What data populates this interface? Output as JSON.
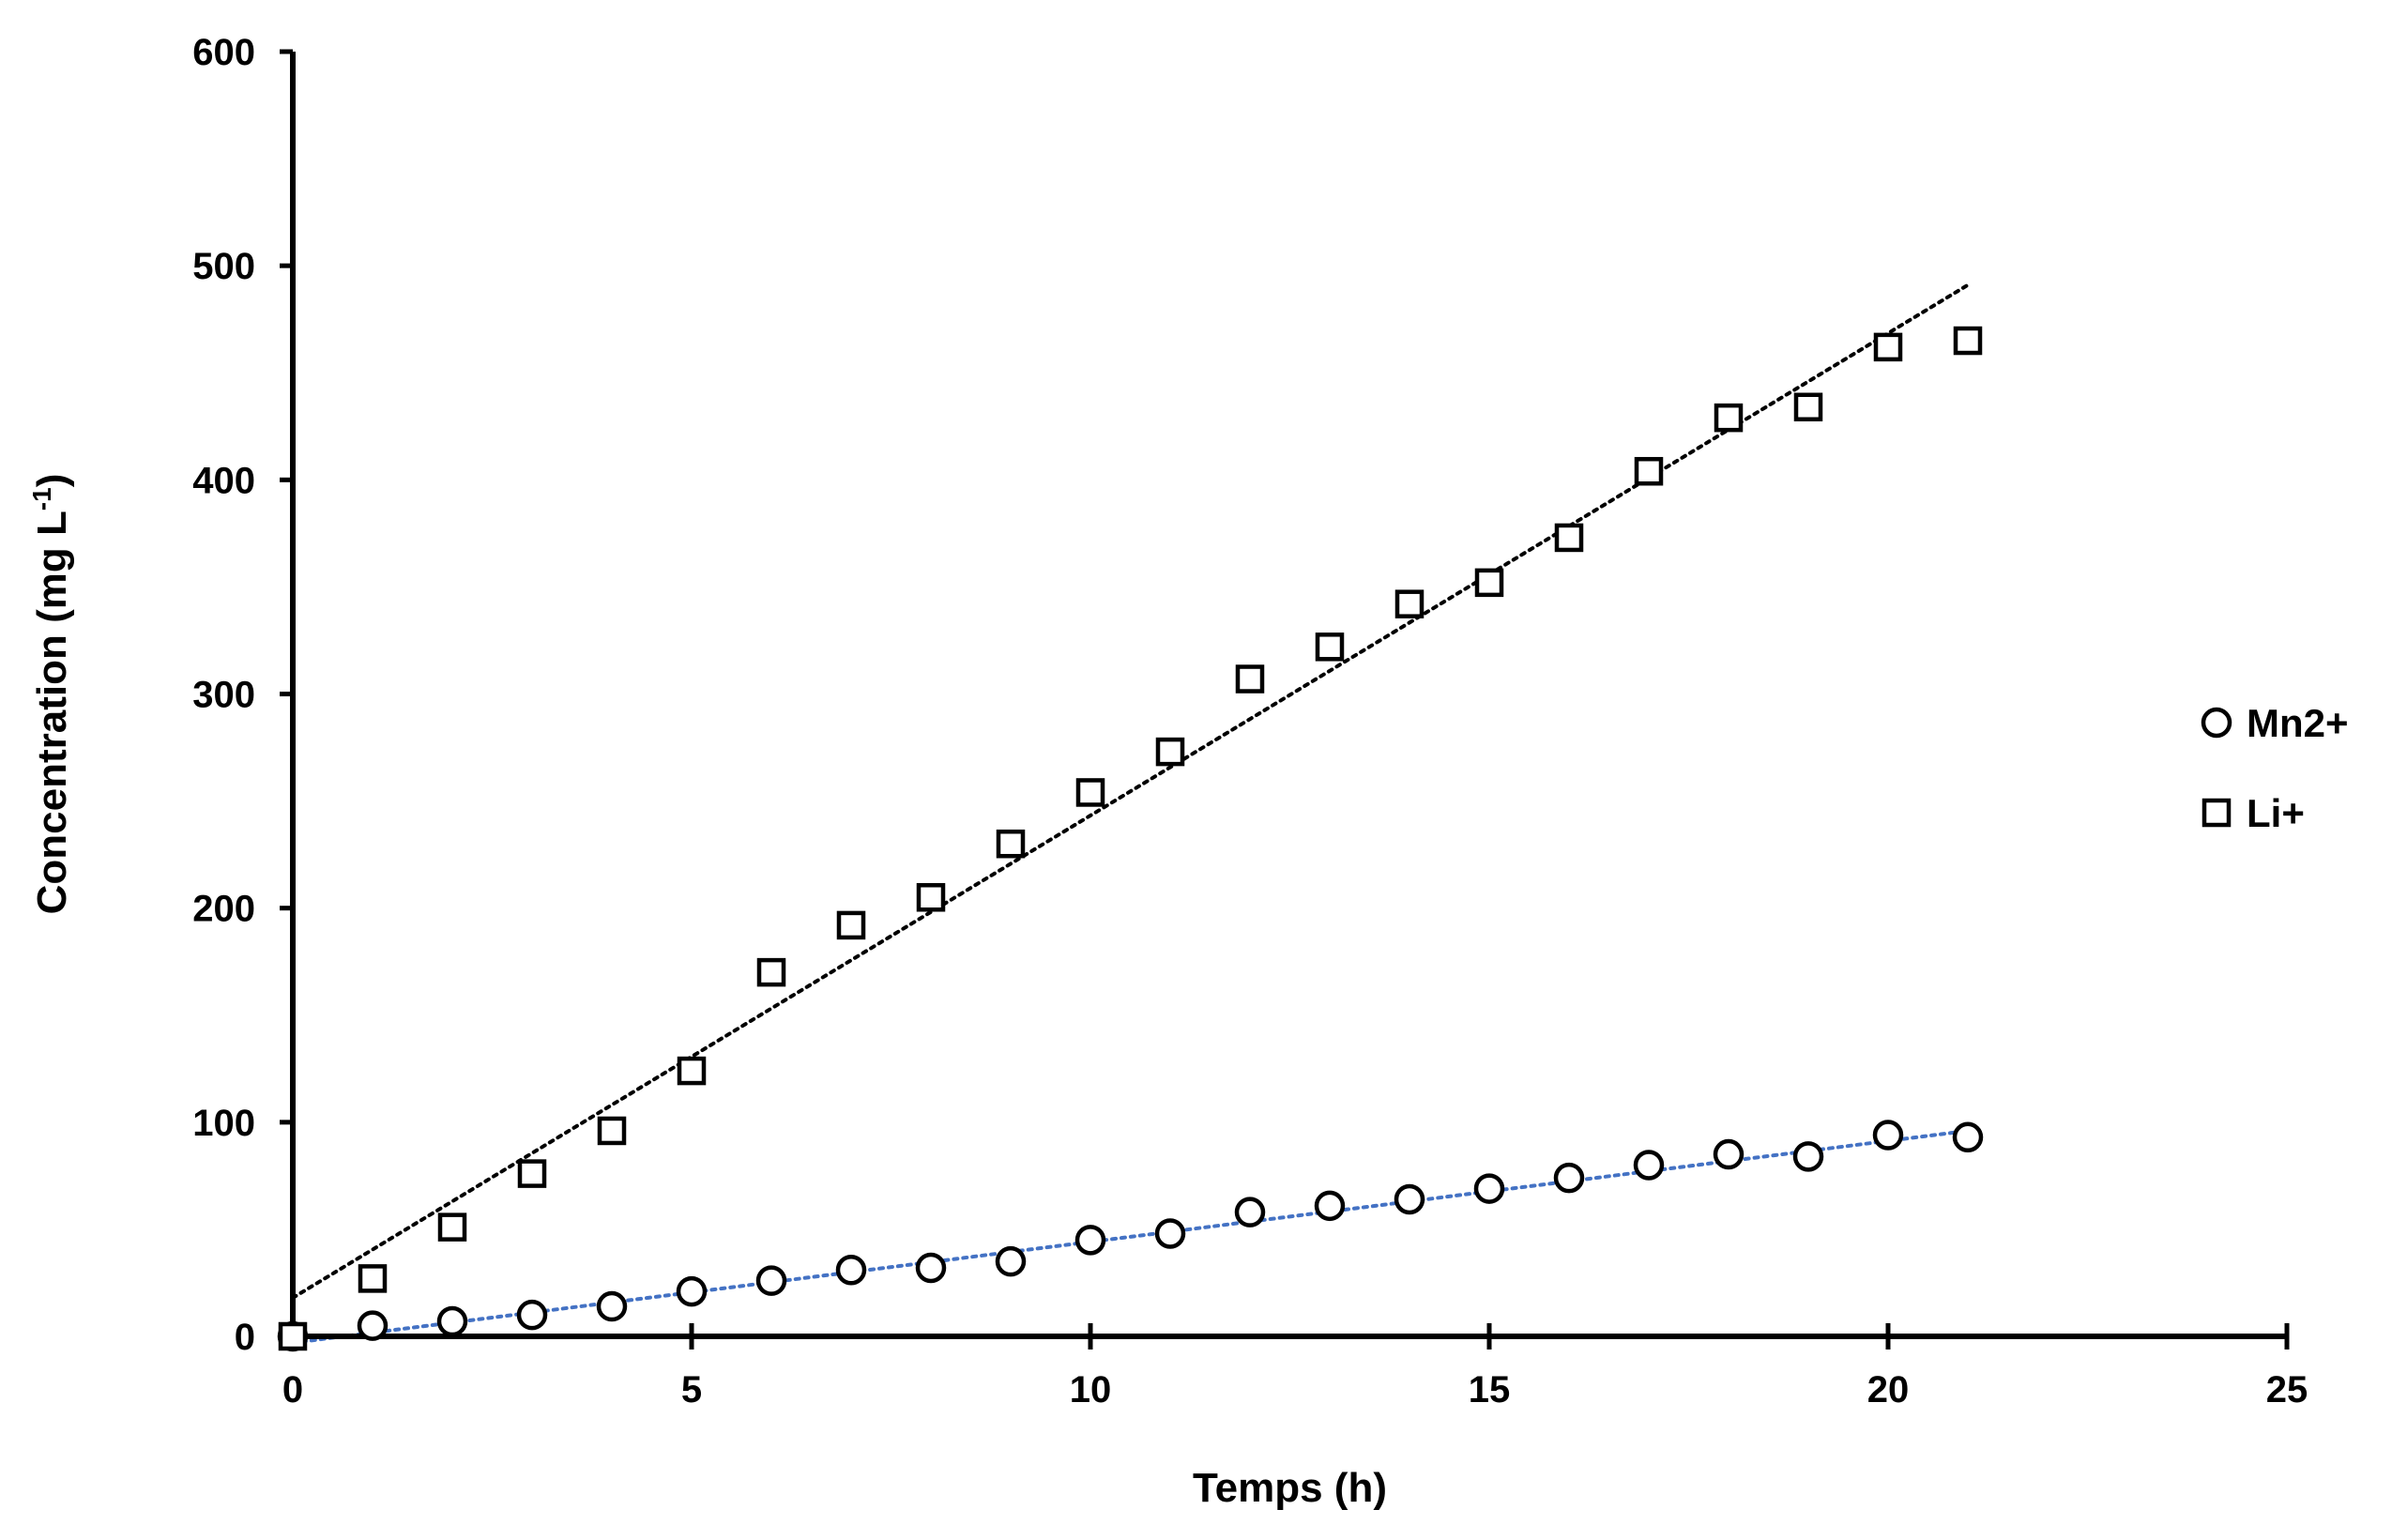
{
  "chart_data": {
    "type": "scatter",
    "xlabel": "Temps (h)",
    "ylabel": {
      "main": "Concentration (mg L",
      "sup": "-1",
      "close": ")"
    },
    "xlim": [
      0,
      25
    ],
    "ylim": [
      0,
      600
    ],
    "x_ticks": [
      0,
      5,
      10,
      15,
      20,
      25
    ],
    "y_ticks": [
      0,
      100,
      200,
      300,
      400,
      500,
      600
    ],
    "grid": false,
    "legend_position": "right",
    "series": [
      {
        "name": "Mn2+",
        "marker": "circle",
        "color": "#000000",
        "x": [
          0,
          1,
          2,
          3,
          4,
          5,
          6,
          7,
          8,
          9,
          10,
          11,
          12,
          13,
          14,
          15,
          16,
          17,
          18,
          19,
          20,
          21
        ],
        "y": [
          0,
          5,
          7,
          10,
          14,
          21,
          26,
          31,
          32,
          35,
          45,
          48,
          58,
          61,
          64,
          69,
          74,
          80,
          85,
          84,
          94,
          93
        ],
        "trendline": {
          "color": "#4472C4",
          "x": [
            0,
            21
          ],
          "y": [
            -3,
            96
          ]
        }
      },
      {
        "name": "Li+",
        "marker": "square",
        "color": "#000000",
        "x": [
          0,
          1,
          2,
          3,
          4,
          5,
          6,
          7,
          8,
          9,
          10,
          11,
          12,
          13,
          14,
          15,
          16,
          17,
          18,
          19,
          20,
          21
        ],
        "y": [
          0,
          27,
          51,
          76,
          96,
          124,
          170,
          192,
          205,
          230,
          254,
          273,
          307,
          322,
          342,
          352,
          373,
          404,
          429,
          434,
          462,
          465
        ],
        "trendline": {
          "color": "#000000",
          "x": [
            0,
            21
          ],
          "y": [
            18,
            491
          ]
        }
      }
    ]
  }
}
